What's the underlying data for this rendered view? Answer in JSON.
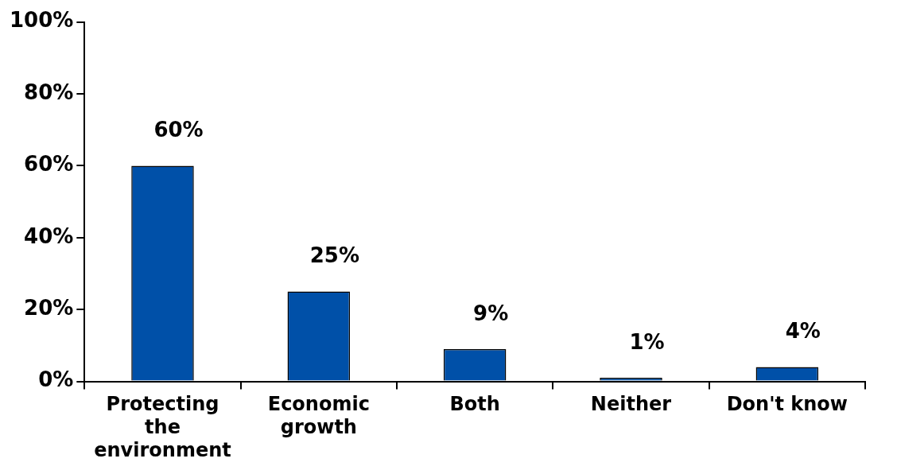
{
  "chart_data": {
    "type": "bar",
    "categories": [
      "Protecting the environment",
      "Economic growth",
      "Both",
      "Neither",
      "Don't know"
    ],
    "values": [
      60,
      25,
      9,
      1,
      4
    ],
    "value_labels": [
      "60%",
      "25%",
      "9%",
      "1%",
      "4%"
    ],
    "color": "#0050a8",
    "ylim": [
      0,
      100
    ],
    "yticks": [
      {
        "value": 0,
        "label": "0%"
      },
      {
        "value": 20,
        "label": "20%"
      },
      {
        "value": 40,
        "label": "40%"
      },
      {
        "value": 60,
        "label": "60%"
      },
      {
        "value": 80,
        "label": "80%"
      },
      {
        "value": 100,
        "label": "100%"
      }
    ],
    "legend": false
  }
}
